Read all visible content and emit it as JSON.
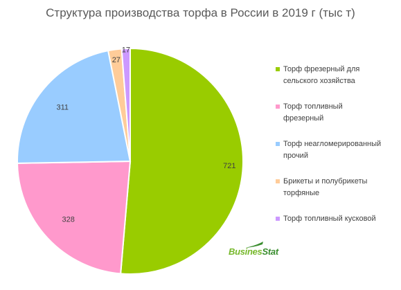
{
  "chart_data": {
    "type": "pie",
    "title": "Структура производства торфа в России в 2019 г (тыс т)",
    "categories": [
      "Торф фрезерный для сельского хозяйства",
      "Торф топливный фрезерный",
      "Торф неагломерированный прочий",
      "Брикеты и полубрикеты торфяные",
      "Торф топливный кусковой"
    ],
    "values": [
      721,
      328,
      311,
      27,
      17
    ],
    "data_labels": [
      "721",
      "328",
      "311",
      "27",
      "17"
    ],
    "colors": [
      "#99cc00",
      "#ff99cc",
      "#99ccff",
      "#ffcc99",
      "#cc99ff"
    ],
    "legend_position": "right"
  },
  "legend_lines": [
    [
      "Торф фрезерный для",
      "сельского хозяйства"
    ],
    [
      "Торф топливный",
      "фрезерный"
    ],
    [
      "Торф неагломерированный",
      "прочий"
    ],
    [
      "Брикеты и полубрикеты",
      "торфяные"
    ],
    [
      "Торф топливный кусковой"
    ]
  ],
  "brand": {
    "part1": "Busines",
    "part2": "Stat"
  }
}
